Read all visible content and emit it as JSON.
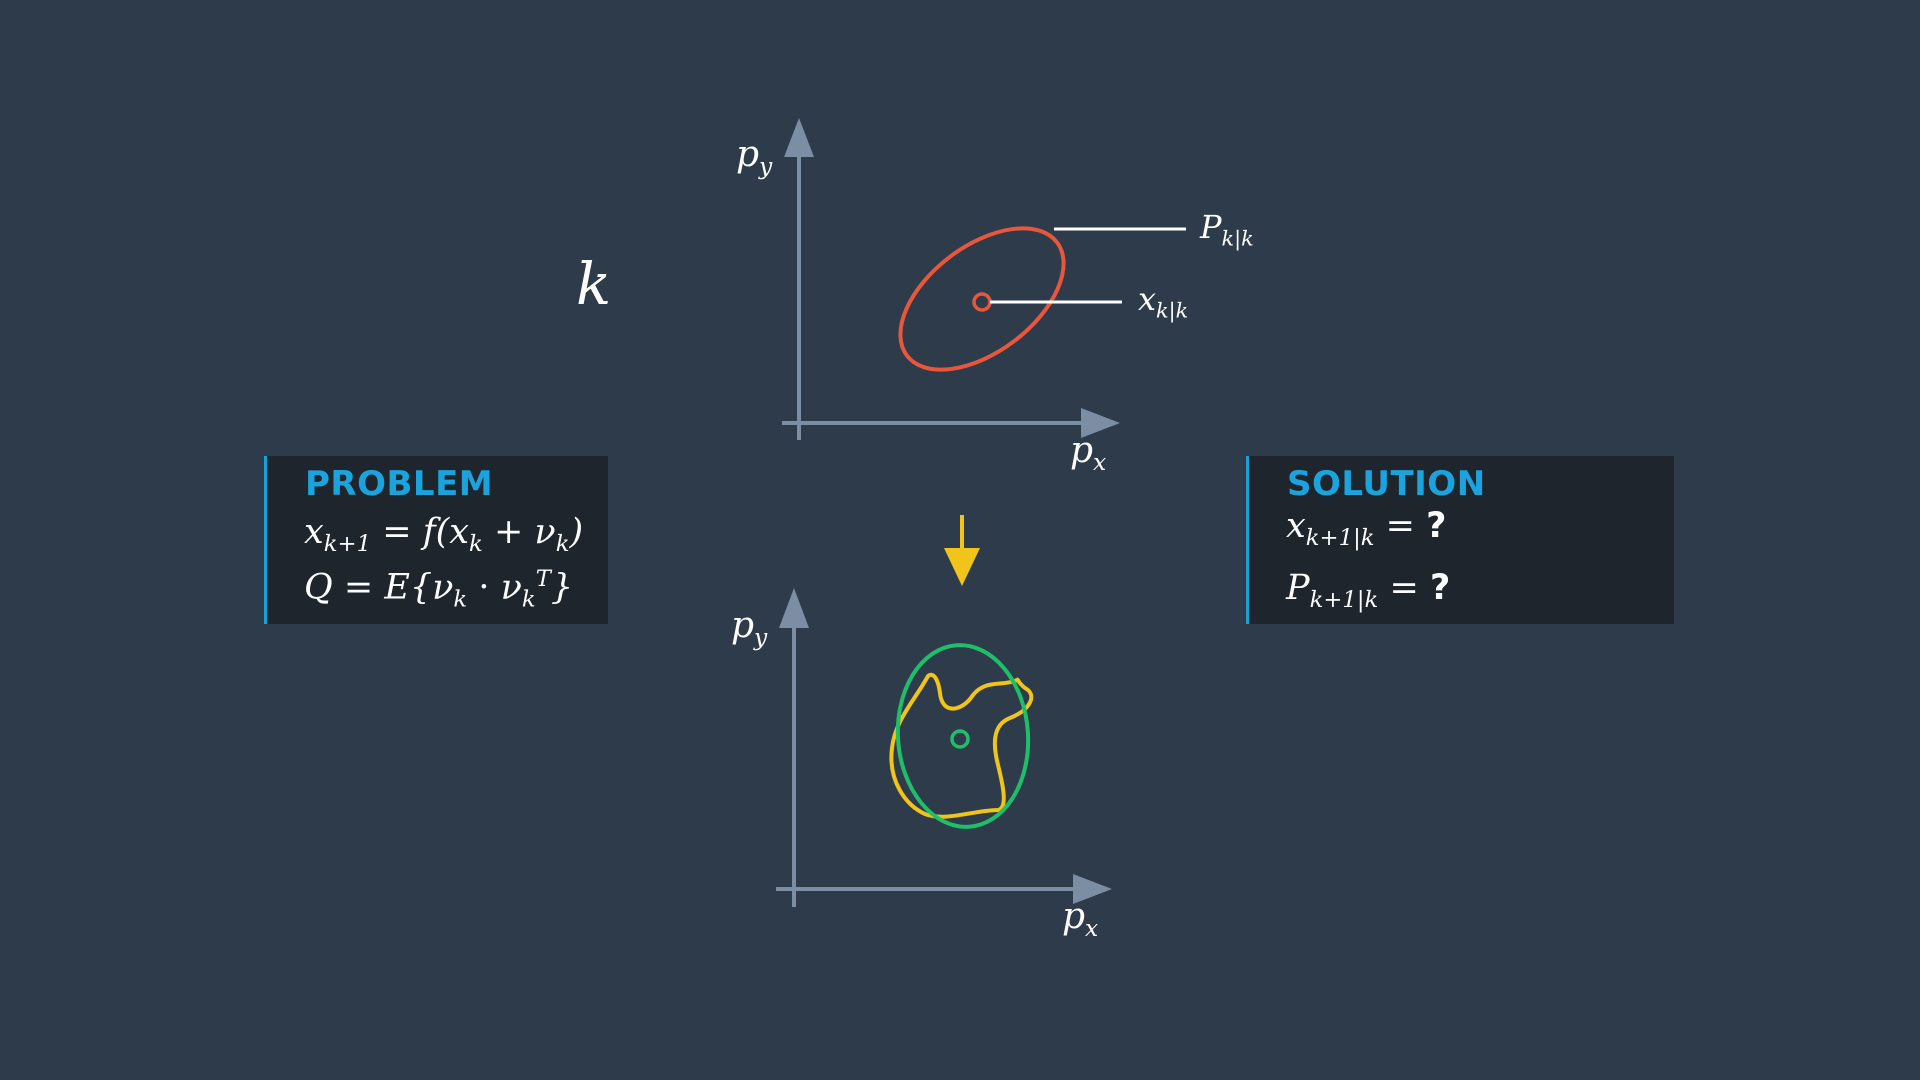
{
  "step_label": "k",
  "top_plot": {
    "axis_y_label": {
      "base": "p",
      "sub": "y"
    },
    "axis_x_label": {
      "base": "p",
      "sub": "x"
    },
    "covariance_label": {
      "base": "P",
      "sub": "k|k"
    },
    "state_label": {
      "base": "x",
      "sub": "k|k"
    }
  },
  "bottom_plot": {
    "axis_y_label": {
      "base": "p",
      "sub": "y"
    },
    "axis_x_label": {
      "base": "p",
      "sub": "x"
    }
  },
  "problem": {
    "title": "PROBLEM",
    "eq1": {
      "lhs_base": "x",
      "lhs_sub": "k+1",
      "eq": "=",
      "f": "f(",
      "x": "x",
      "x_sub": "k",
      "plus": " + ",
      "nu": "ν",
      "nu_sub": "k",
      "close": ")"
    },
    "eq2": {
      "lhs": "Q",
      "eq": "=",
      "E": "E{",
      "nu1": "ν",
      "nu1_sub": "k",
      "dot": " · ",
      "nu2": "ν",
      "nu2_sub": "k",
      "nu2_sup": "T",
      "close": "}"
    }
  },
  "solution": {
    "title": "SOLUTION",
    "eq1": {
      "base": "x",
      "sub": "k+1|k",
      "eq": "=",
      "value": "?"
    },
    "eq2": {
      "base": "P",
      "sub": "k+1|k",
      "eq": "=",
      "value": "?"
    }
  },
  "colors": {
    "background": "#2e3b4a",
    "axis": "#7b8ea3",
    "covariance_ellipse": "#e8573c",
    "predicted_ellipse": "#1fbf6a",
    "transformed_distribution": "#f0c419",
    "transition_arrow": "#f0c419",
    "accent": "#1aa3dd",
    "panel": "#1e252d"
  }
}
